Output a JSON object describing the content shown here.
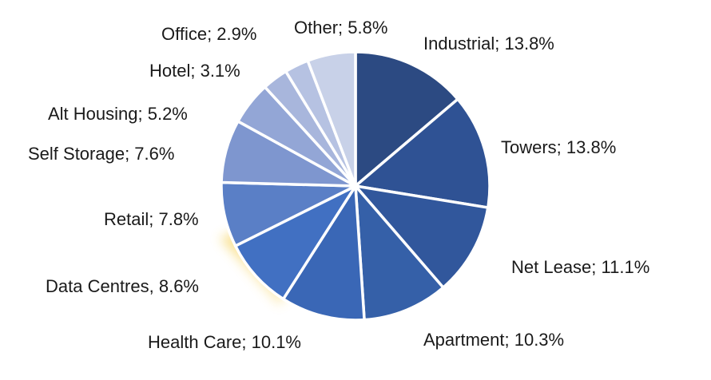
{
  "chart_data": {
    "type": "pie",
    "title": "",
    "categories": [
      "Industrial",
      "Towers",
      "Net Lease",
      "Apartment",
      "Health Care",
      "Data Centres",
      "Retail",
      "Self Storage",
      "Alt Housing",
      "Hotel",
      "Office",
      "Other"
    ],
    "values": [
      13.8,
      13.8,
      11.1,
      10.3,
      10.1,
      8.6,
      7.8,
      7.6,
      5.2,
      3.1,
      2.9,
      5.8
    ],
    "unit": "%",
    "labels": [
      "Industrial; 13.8%",
      "Towers; 13.8%",
      "Net Lease; 11.1%",
      "Apartment; 10.3%",
      "Health Care; 10.1%",
      "Data Centres, 8.6%",
      "Retail; 7.8%",
      "Self Storage; 7.6%",
      "Alt Housing; 5.2%",
      "Hotel; 3.1%",
      "Office; 2.9%",
      "Other; 5.8%"
    ],
    "colors": [
      "#2c4a82",
      "#2f5294",
      "#31579c",
      "#3560a8",
      "#3a67b6",
      "#4170c2",
      "#5a7fc6",
      "#7e96cf",
      "#93a6d6",
      "#a8b6dc",
      "#b6c2e2",
      "#c8d1e8"
    ],
    "legend": "none",
    "start_angle_deg": 0,
    "direction": "clockwise"
  }
}
